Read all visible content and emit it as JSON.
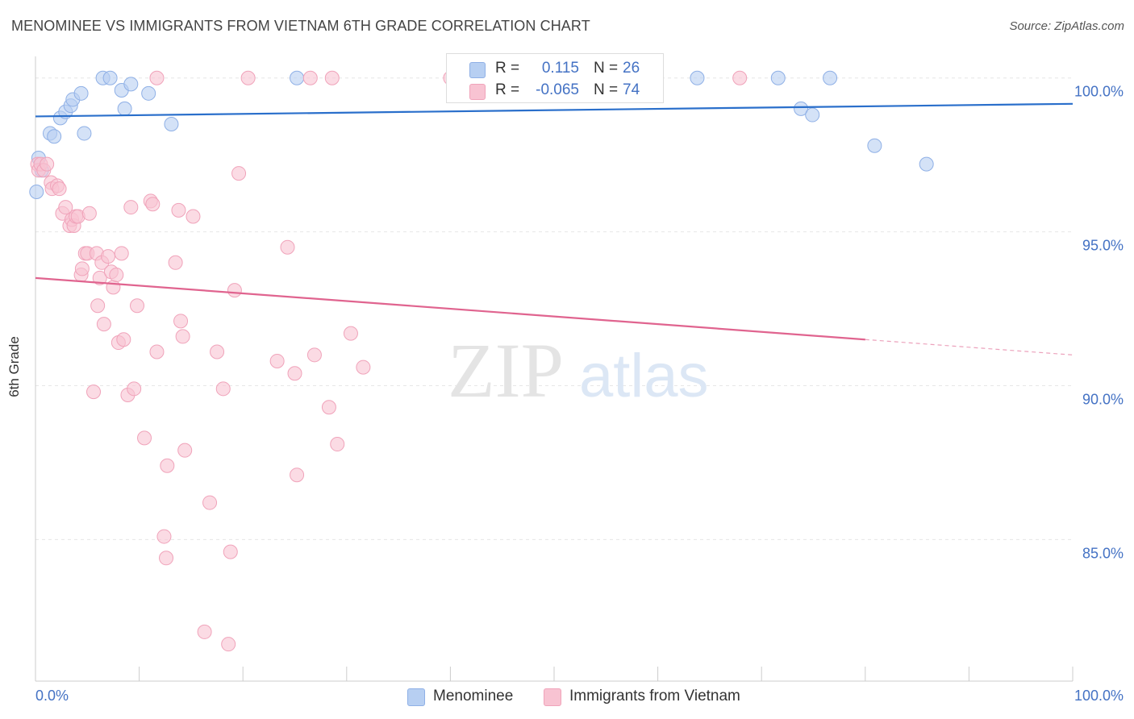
{
  "title": "MENOMINEE VS IMMIGRANTS FROM VIETNAM 6TH GRADE CORRELATION CHART",
  "source": "Source: ZipAtlas.com",
  "watermark": {
    "zip": "ZIP",
    "atlas": "atlas"
  },
  "colors": {
    "blue_fill": "#b7cff2",
    "blue_stroke": "#8fb0e6",
    "blue_line": "#2a6fcb",
    "pink_fill": "#f8c3d2",
    "pink_stroke": "#f0a3ba",
    "pink_line": "#e0648f",
    "tick_label": "#4472c4",
    "grid": "#e6e6e6"
  },
  "legend_top": {
    "rows": [
      {
        "r_label": "R =",
        "r_value": "0.115",
        "n_label": "N =",
        "n_value": "26",
        "color": "#b7cff2",
        "stroke": "#8fb0e6"
      },
      {
        "r_label": "R =",
        "r_value": "-0.065",
        "n_label": "N =",
        "n_value": "74",
        "color": "#f8c3d2",
        "stroke": "#f0a3ba"
      }
    ]
  },
  "legend_bottom": {
    "items": [
      {
        "label": "Menominee",
        "color": "#b7cff2",
        "stroke": "#8fb0e6"
      },
      {
        "label": "Immigrants from Vietnam",
        "color": "#f8c3d2",
        "stroke": "#f0a3ba"
      }
    ]
  },
  "chart_data": {
    "type": "scatter",
    "title": "MENOMINEE VS IMMIGRANTS FROM VIETNAM 6TH GRADE CORRELATION CHART",
    "xlabel": "",
    "ylabel": "6th Grade",
    "xlim": [
      0,
      100
    ],
    "ylim": [
      80.4,
      100.7
    ],
    "x_tick_labels": [
      {
        "value": 0,
        "label": "0.0%"
      },
      {
        "value": 100,
        "label": "100.0%"
      }
    ],
    "y_tick_labels": [
      {
        "value": 100,
        "label": "100.0%"
      },
      {
        "value": 95,
        "label": "95.0%"
      },
      {
        "value": 90,
        "label": "90.0%"
      },
      {
        "value": 85,
        "label": "85.0%"
      }
    ],
    "grid": true,
    "legend": "top-center",
    "series": [
      {
        "name": "Menominee",
        "r": 0.115,
        "n": 26,
        "trend": {
          "x": [
            0,
            100
          ],
          "y": [
            98.75,
            99.16
          ],
          "dashed_from": null
        },
        "points": [
          [
            0.3,
            97.4
          ],
          [
            0.1,
            96.3
          ],
          [
            0.6,
            97.0
          ],
          [
            1.4,
            98.2
          ],
          [
            1.8,
            98.1
          ],
          [
            2.4,
            98.7
          ],
          [
            2.9,
            98.9
          ],
          [
            3.4,
            99.1
          ],
          [
            3.6,
            99.3
          ],
          [
            4.4,
            99.5
          ],
          [
            4.7,
            98.2
          ],
          [
            6.5,
            100.0
          ],
          [
            7.2,
            100.0
          ],
          [
            8.3,
            99.6
          ],
          [
            8.6,
            99.0
          ],
          [
            9.2,
            99.8
          ],
          [
            10.9,
            99.5
          ],
          [
            13.1,
            98.5
          ],
          [
            25.2,
            100.0
          ],
          [
            63.8,
            100.0
          ],
          [
            71.6,
            100.0
          ],
          [
            76.6,
            100.0
          ],
          [
            73.8,
            99.0
          ],
          [
            74.9,
            98.8
          ],
          [
            80.9,
            97.8
          ],
          [
            85.9,
            97.2
          ]
        ]
      },
      {
        "name": "Immigrants from Vietnam",
        "r": -0.065,
        "n": 74,
        "trend": {
          "x": [
            0,
            100
          ],
          "y": [
            93.5,
            91.0
          ],
          "dashed_from": 80
        },
        "points": [
          [
            0.2,
            97.2
          ],
          [
            0.3,
            97.0
          ],
          [
            0.5,
            97.2
          ],
          [
            0.8,
            97.0
          ],
          [
            1.1,
            97.2
          ],
          [
            1.5,
            96.6
          ],
          [
            1.6,
            96.4
          ],
          [
            2.1,
            96.5
          ],
          [
            2.3,
            96.4
          ],
          [
            2.6,
            95.6
          ],
          [
            2.9,
            95.8
          ],
          [
            3.3,
            95.2
          ],
          [
            3.5,
            95.4
          ],
          [
            3.7,
            95.2
          ],
          [
            3.9,
            95.5
          ],
          [
            4.1,
            95.5
          ],
          [
            4.4,
            93.6
          ],
          [
            4.5,
            93.8
          ],
          [
            4.8,
            94.3
          ],
          [
            5.0,
            94.3
          ],
          [
            5.2,
            95.6
          ],
          [
            5.6,
            89.8
          ],
          [
            5.9,
            94.3
          ],
          [
            6.0,
            92.6
          ],
          [
            6.4,
            94.0
          ],
          [
            6.2,
            93.5
          ],
          [
            6.6,
            92.0
          ],
          [
            7.0,
            94.2
          ],
          [
            7.3,
            93.7
          ],
          [
            7.5,
            93.2
          ],
          [
            7.8,
            93.6
          ],
          [
            8.0,
            91.4
          ],
          [
            8.3,
            94.3
          ],
          [
            8.5,
            91.5
          ],
          [
            8.9,
            89.7
          ],
          [
            9.2,
            95.8
          ],
          [
            9.5,
            89.9
          ],
          [
            9.8,
            92.6
          ],
          [
            10.5,
            88.3
          ],
          [
            11.1,
            96.0
          ],
          [
            11.3,
            95.9
          ],
          [
            11.7,
            91.1
          ],
          [
            11.7,
            100.0
          ],
          [
            12.4,
            85.1
          ],
          [
            12.6,
            84.4
          ],
          [
            12.7,
            87.4
          ],
          [
            13.5,
            94.0
          ],
          [
            13.8,
            95.7
          ],
          [
            14.0,
            92.1
          ],
          [
            14.2,
            91.6
          ],
          [
            14.4,
            87.9
          ],
          [
            15.2,
            95.5
          ],
          [
            16.3,
            82.0
          ],
          [
            16.8,
            86.2
          ],
          [
            17.5,
            91.1
          ],
          [
            18.1,
            89.9
          ],
          [
            18.6,
            81.6
          ],
          [
            18.8,
            84.6
          ],
          [
            19.2,
            93.1
          ],
          [
            19.6,
            96.9
          ],
          [
            20.5,
            100.0
          ],
          [
            23.3,
            90.8
          ],
          [
            24.3,
            94.5
          ],
          [
            25.0,
            90.4
          ],
          [
            25.2,
            87.1
          ],
          [
            26.5,
            100.0
          ],
          [
            26.9,
            91.0
          ],
          [
            28.3,
            89.3
          ],
          [
            28.6,
            100.0
          ],
          [
            29.1,
            88.1
          ],
          [
            30.4,
            91.7
          ],
          [
            31.6,
            90.6
          ],
          [
            40.0,
            100.0
          ],
          [
            67.9,
            100.0
          ]
        ]
      }
    ]
  }
}
